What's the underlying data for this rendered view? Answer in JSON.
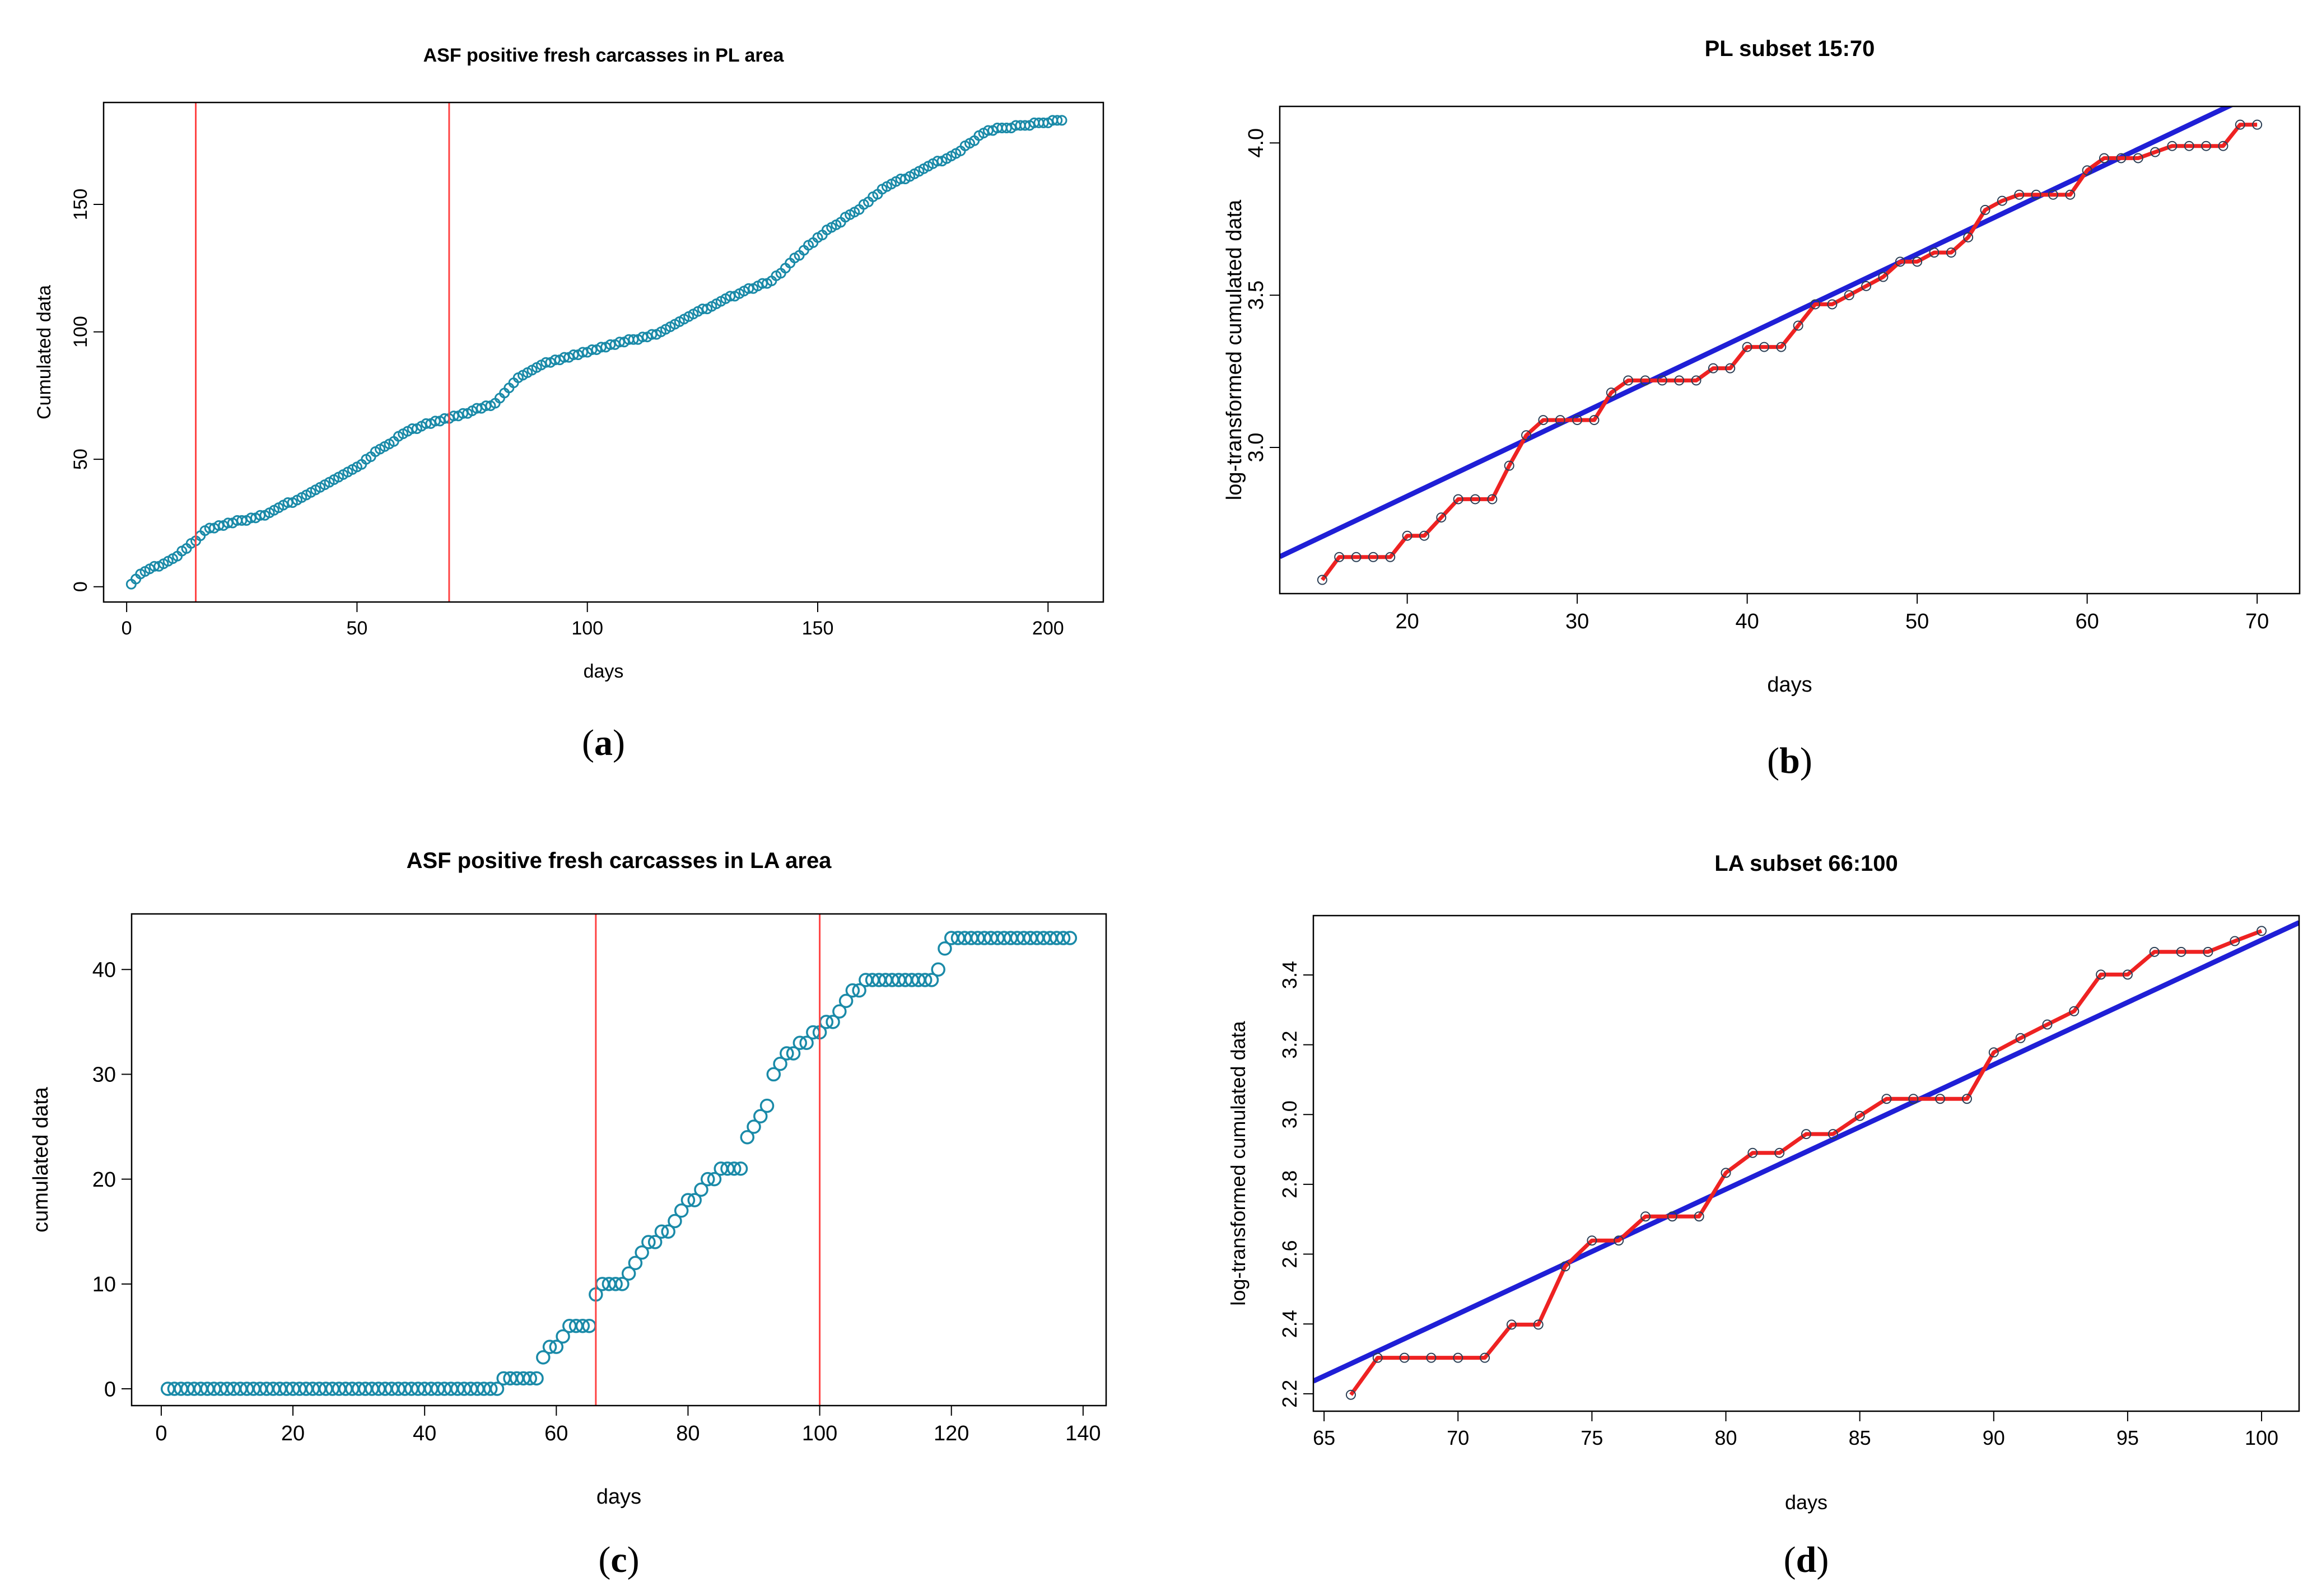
{
  "chart_data": [
    {
      "id": "a",
      "type": "scatter",
      "title": "ASF positive fresh carcasses in PL area",
      "xlabel": "days",
      "ylabel": "Cumulated data",
      "caption": {
        "open": "(",
        "letter": "a",
        "close": ")"
      },
      "xlim": [
        -5,
        212
      ],
      "ylim": [
        -6,
        190
      ],
      "xticks": [
        0,
        50,
        100,
        150,
        200
      ],
      "yticks": [
        0,
        50,
        100,
        150
      ],
      "vlines": [
        15,
        70
      ],
      "point_color": "#1a8aa8",
      "vline_color": "#ff4444",
      "series": [
        {
          "name": "Cumulated data",
          "x_start": 1,
          "x_end": 203,
          "anchors": [
            [
              1,
              1
            ],
            [
              3,
              5
            ],
            [
              10,
              11
            ],
            [
              15,
              18
            ],
            [
              17,
              22
            ],
            [
              20,
              24
            ],
            [
              30,
              28
            ],
            [
              40,
              37
            ],
            [
              45,
              42
            ],
            [
              50,
              47
            ],
            [
              55,
              54
            ],
            [
              58,
              57
            ],
            [
              60,
              60
            ],
            [
              65,
              64
            ],
            [
              70,
              66
            ],
            [
              80,
              72
            ],
            [
              85,
              82
            ],
            [
              90,
              87
            ],
            [
              100,
              92
            ],
            [
              110,
              97
            ],
            [
              115,
              99
            ],
            [
              120,
              104
            ],
            [
              130,
              113
            ],
            [
              140,
              120
            ],
            [
              150,
              137
            ],
            [
              158,
              147
            ],
            [
              165,
              157
            ],
            [
              180,
              170
            ],
            [
              186,
              178
            ],
            [
              190,
              180
            ],
            [
              203,
              183
            ]
          ]
        }
      ]
    },
    {
      "id": "b",
      "type": "scatter",
      "title": "PL subset 15:70",
      "xlabel": "days",
      "ylabel": "log-transformed cumulated data",
      "caption": {
        "open": "(",
        "letter": "b",
        "close": ")"
      },
      "xlim": [
        12.5,
        72.5
      ],
      "ylim": [
        2.52,
        4.12
      ],
      "xticks": [
        20,
        30,
        40,
        50,
        60,
        70
      ],
      "yticks": [
        3.0,
        3.5,
        4.0
      ],
      "fit_line": {
        "intercept": 2.31,
        "slope": 0.0265
      },
      "point_color": "#2b3f55",
      "line_color": "#ee2222",
      "fit_color": "#1f1fd6",
      "series": [
        {
          "name": "log-transformed cumulated data",
          "x": [
            15,
            16,
            17,
            18,
            19,
            20,
            21,
            22,
            23,
            24,
            25,
            26,
            27,
            28,
            29,
            30,
            31,
            32,
            33,
            34,
            35,
            36,
            37,
            38,
            39,
            40,
            41,
            42,
            43,
            44,
            45,
            46,
            47,
            48,
            49,
            50,
            51,
            52,
            53,
            54,
            55,
            56,
            57,
            58,
            59,
            60,
            61,
            62,
            63,
            64,
            65,
            66,
            67,
            68,
            69,
            70
          ],
          "y": [
            2.565,
            2.64,
            2.64,
            2.64,
            2.64,
            2.71,
            2.71,
            2.77,
            2.83,
            2.83,
            2.83,
            2.94,
            3.04,
            3.09,
            3.09,
            3.09,
            3.09,
            3.18,
            3.22,
            3.22,
            3.22,
            3.22,
            3.22,
            3.26,
            3.26,
            3.33,
            3.33,
            3.33,
            3.4,
            3.47,
            3.47,
            3.5,
            3.53,
            3.56,
            3.61,
            3.61,
            3.64,
            3.64,
            3.69,
            3.78,
            3.81,
            3.83,
            3.83,
            3.83,
            3.83,
            3.91,
            3.95,
            3.95,
            3.95,
            3.97,
            3.99,
            3.99,
            3.99,
            3.99,
            4.06,
            4.06
          ]
        }
      ]
    },
    {
      "id": "c",
      "type": "scatter",
      "title": "ASF positive fresh carcasses in LA area",
      "xlabel": "days",
      "ylabel": "cumulated data",
      "caption": {
        "open": "(",
        "letter": "c",
        "close": ")"
      },
      "xlim": [
        -4.5,
        143.5
      ],
      "ylim": [
        -1.6,
        45.3
      ],
      "xticks": [
        0,
        20,
        40,
        60,
        80,
        100,
        120,
        140
      ],
      "yticks": [
        0,
        10,
        20,
        30,
        40
      ],
      "vlines": [
        66,
        100
      ],
      "point_color": "#1a8aa8",
      "vline_color": "#ff4444",
      "series": [
        {
          "name": "cumulated data",
          "x_start": 1,
          "x_end": 138,
          "anchors": [
            [
              1,
              0
            ],
            [
              51,
              0
            ],
            [
              52,
              1
            ],
            [
              57,
              1
            ],
            [
              58,
              3
            ],
            [
              60,
              4
            ],
            [
              61,
              5
            ],
            [
              63,
              6
            ],
            [
              65,
              6
            ],
            [
              66,
              9
            ],
            [
              67,
              10
            ],
            [
              70,
              10
            ],
            [
              71,
              11
            ],
            [
              73,
              13
            ],
            [
              75,
              14
            ],
            [
              77,
              15
            ],
            [
              79,
              17
            ],
            [
              81,
              18
            ],
            [
              85,
              21
            ],
            [
              88,
              21
            ],
            [
              89,
              24
            ],
            [
              92,
              27
            ],
            [
              93,
              30
            ],
            [
              95,
              32
            ],
            [
              98,
              33
            ],
            [
              100,
              34
            ],
            [
              102,
              35
            ],
            [
              104,
              37
            ],
            [
              106,
              38
            ],
            [
              107,
              39
            ],
            [
              117,
              39
            ],
            [
              118,
              40
            ],
            [
              119,
              42
            ],
            [
              120,
              43
            ],
            [
              138,
              43
            ]
          ]
        }
      ]
    },
    {
      "id": "d",
      "type": "scatter",
      "title": "LA subset 66:100",
      "xlabel": "days",
      "ylabel": "log-transformed cumulated data",
      "caption": {
        "open": "(",
        "letter": "d",
        "close": ")"
      },
      "xlim": [
        64.6,
        101.4
      ],
      "ylim": [
        2.15,
        3.57
      ],
      "xticks": [
        65,
        70,
        75,
        80,
        85,
        90,
        95,
        100
      ],
      "yticks": [
        2.2,
        2.4,
        2.6,
        2.8,
        3.0,
        3.2,
        3.4
      ],
      "fit_line": {
        "intercept": -0.07,
        "slope": 0.0357
      },
      "point_color": "#2b3f55",
      "line_color": "#ee2222",
      "fit_color": "#1f1fd6",
      "series": [
        {
          "name": "log-transformed cumulated data",
          "x": [
            66,
            67,
            68,
            69,
            70,
            71,
            72,
            73,
            74,
            75,
            76,
            77,
            78,
            79,
            80,
            81,
            82,
            83,
            84,
            85,
            86,
            87,
            88,
            89,
            90,
            91,
            92,
            93,
            94,
            95,
            96,
            97,
            98,
            99,
            100
          ],
          "y": [
            2.197,
            2.303,
            2.303,
            2.303,
            2.303,
            2.303,
            2.398,
            2.398,
            2.565,
            2.639,
            2.639,
            2.708,
            2.708,
            2.708,
            2.833,
            2.89,
            2.89,
            2.944,
            2.944,
            2.996,
            3.045,
            3.045,
            3.045,
            3.045,
            3.178,
            3.219,
            3.258,
            3.296,
            3.401,
            3.401,
            3.466,
            3.466,
            3.466,
            3.497,
            3.526
          ]
        }
      ]
    }
  ]
}
